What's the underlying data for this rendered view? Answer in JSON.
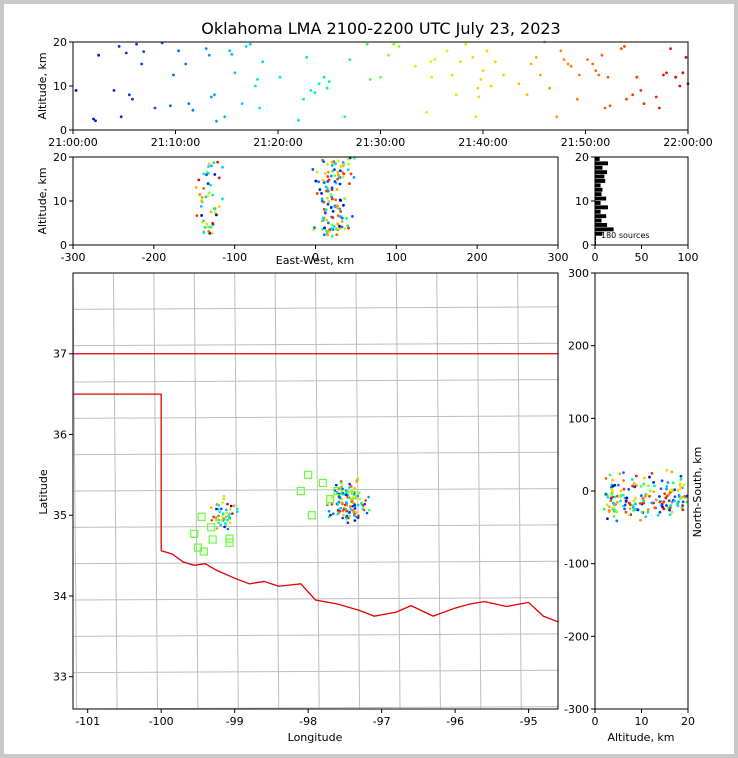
{
  "chart_data": [
    {
      "panel": "altitude-vs-time",
      "type": "scatter",
      "title": "Oklahoma LMA 2100-2200 UTC July 23, 2023",
      "xlabel": "",
      "ylabel": "Altitude, km",
      "x_ticks": [
        "21:00:00",
        "21:10:00",
        "21:20:00",
        "21:30:00",
        "21:40:00",
        "21:50:00",
        "22:00:00"
      ],
      "xlim_minutes": [
        0,
        60
      ],
      "ylim": [
        0,
        20
      ],
      "y_ticks": [
        0,
        10,
        20
      ],
      "color_by": "time (blue → red)",
      "points": [
        [
          0.3,
          9
        ],
        [
          2,
          2.5
        ],
        [
          2.2,
          2.1
        ],
        [
          2.5,
          17
        ],
        [
          4,
          9
        ],
        [
          4.5,
          19
        ],
        [
          4.7,
          3
        ],
        [
          5.2,
          17.5
        ],
        [
          5.5,
          8
        ],
        [
          5.8,
          7
        ],
        [
          6.2,
          19.5
        ],
        [
          6.7,
          15
        ],
        [
          6.9,
          17.8
        ],
        [
          8,
          5
        ],
        [
          8.7,
          19.8
        ],
        [
          9.5,
          5.5
        ],
        [
          9.8,
          12.5
        ],
        [
          10.3,
          18
        ],
        [
          11,
          15
        ],
        [
          11.3,
          6
        ],
        [
          11.7,
          4.5
        ],
        [
          13,
          18.5
        ],
        [
          13.3,
          17
        ],
        [
          13.5,
          7.5
        ],
        [
          13.8,
          8
        ],
        [
          14,
          2
        ],
        [
          14.8,
          3
        ],
        [
          15.3,
          18
        ],
        [
          15.5,
          17.2
        ],
        [
          15.8,
          13
        ],
        [
          16.5,
          6
        ],
        [
          16.9,
          19
        ],
        [
          17.3,
          19.5
        ],
        [
          17.8,
          10
        ],
        [
          18,
          11.5
        ],
        [
          18.2,
          5
        ],
        [
          18.5,
          15.5
        ],
        [
          20.2,
          12
        ],
        [
          22,
          2.2
        ],
        [
          22.5,
          7
        ],
        [
          22.8,
          16.5
        ],
        [
          23.2,
          9
        ],
        [
          23.6,
          8.5
        ],
        [
          24,
          10.5
        ],
        [
          24.5,
          12
        ],
        [
          24.8,
          9.5
        ],
        [
          25,
          11
        ],
        [
          26.5,
          3
        ],
        [
          27,
          16
        ],
        [
          28.7,
          19.5
        ],
        [
          29,
          11.5
        ],
        [
          30,
          12
        ],
        [
          30.8,
          17
        ],
        [
          31.3,
          19.5
        ],
        [
          31.8,
          19
        ],
        [
          33.4,
          14.5
        ],
        [
          34.5,
          4
        ],
        [
          34.9,
          15.5
        ],
        [
          35,
          12
        ],
        [
          35.3,
          16
        ],
        [
          36.5,
          18
        ],
        [
          37,
          12.5
        ],
        [
          37.4,
          8
        ],
        [
          37.8,
          15.5
        ],
        [
          38.3,
          19.5
        ],
        [
          39,
          16.5
        ],
        [
          39.3,
          3
        ],
        [
          39.5,
          9.5
        ],
        [
          39.6,
          7.5
        ],
        [
          39.8,
          11.5
        ],
        [
          40,
          13.5
        ],
        [
          40.4,
          18
        ],
        [
          40.8,
          10
        ],
        [
          41.2,
          15.5
        ],
        [
          42,
          12.5
        ],
        [
          43.5,
          10.5
        ],
        [
          44.3,
          8
        ],
        [
          44.7,
          15
        ],
        [
          45.2,
          16.5
        ],
        [
          45.6,
          12.5
        ],
        [
          46,
          20
        ],
        [
          46.5,
          9.5
        ],
        [
          47.2,
          3
        ],
        [
          47.6,
          18
        ],
        [
          47.9,
          16
        ],
        [
          48.3,
          15
        ],
        [
          48.6,
          14.5
        ],
        [
          49.2,
          7
        ],
        [
          49.4,
          12.5
        ],
        [
          50.2,
          16
        ],
        [
          50.7,
          15
        ],
        [
          51,
          13.5
        ],
        [
          51.3,
          12.5
        ],
        [
          51.6,
          17
        ],
        [
          51.9,
          5
        ],
        [
          52.2,
          12
        ],
        [
          52.4,
          5.5
        ],
        [
          53.5,
          18.5
        ],
        [
          53.8,
          19
        ],
        [
          54,
          7
        ],
        [
          54.6,
          8
        ],
        [
          55,
          12
        ],
        [
          55.4,
          9
        ],
        [
          55.7,
          6
        ],
        [
          56.9,
          7.5
        ],
        [
          57.2,
          5
        ],
        [
          57.6,
          12.5
        ],
        [
          57.9,
          13
        ],
        [
          58.3,
          18.5
        ],
        [
          58.8,
          12
        ],
        [
          59.2,
          10
        ],
        [
          59.5,
          13
        ],
        [
          59.8,
          16.5
        ],
        [
          60,
          10.5
        ]
      ]
    },
    {
      "panel": "altitude-vs-east-west",
      "type": "scatter",
      "xlabel": "East-West, km",
      "ylabel": "Altitude, km",
      "xlim": [
        -300,
        300
      ],
      "x_ticks": [
        -300,
        -200,
        -100,
        0,
        100,
        200,
        300
      ],
      "ylim": [
        0,
        20
      ],
      "y_ticks": [
        0,
        10,
        20
      ]
    },
    {
      "panel": "altitude-histogram",
      "type": "bar",
      "xlim": [
        0,
        100
      ],
      "x_ticks": [
        0,
        50,
        100
      ],
      "ylim": [
        0,
        20
      ],
      "y_ticks": [
        0,
        10,
        20
      ],
      "annotation": "180 sources"
    },
    {
      "panel": "plan-view-map",
      "type": "scatter",
      "xlabel": "Longitude",
      "ylabel": "Latitude",
      "xlim": [
        -101.2,
        -94.6
      ],
      "x_ticks": [
        -101,
        -100,
        -99,
        -98,
        -97,
        -96,
        -95
      ],
      "ylim": [
        32.6,
        38.0
      ],
      "y_ticks": [
        33,
        34,
        35,
        36,
        37
      ],
      "station_markers": [
        [
          -98.0,
          35.5
        ],
        [
          -97.8,
          35.4
        ],
        [
          -97.6,
          35.3
        ],
        [
          -97.7,
          35.2
        ],
        [
          -97.4,
          35.25
        ],
        [
          -98.1,
          35.3
        ],
        [
          -97.95,
          35.0
        ],
        [
          -99.45,
          34.98
        ],
        [
          -99.32,
          34.85
        ],
        [
          -99.55,
          34.77
        ],
        [
          -99.3,
          34.7
        ],
        [
          -99.07,
          34.71
        ],
        [
          -99.07,
          34.66
        ],
        [
          -99.5,
          34.6
        ],
        [
          -99.42,
          34.55
        ]
      ]
    },
    {
      "panel": "north-south-vs-altitude",
      "type": "scatter",
      "xlabel": "Altitude, km",
      "ylabel": "North-South, km",
      "xlim": [
        0,
        20
      ],
      "x_ticks": [
        0,
        10,
        20
      ],
      "ylim": [
        -300,
        300
      ],
      "y_ticks": [
        -300,
        -200,
        -100,
        0,
        100,
        200,
        300
      ]
    }
  ]
}
